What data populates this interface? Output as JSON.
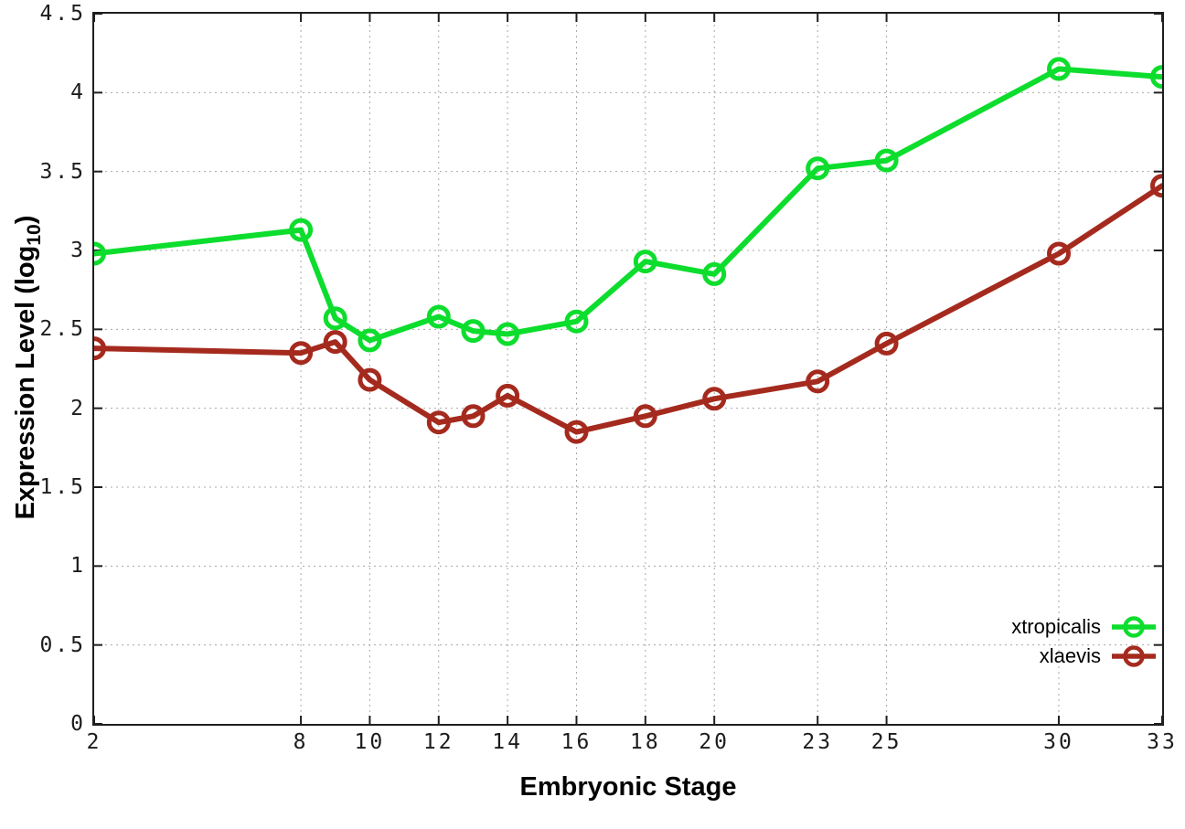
{
  "figure": {
    "background_color": "#ffffff",
    "axis_color": "#1f1f1f",
    "grid_color": "#a8a8a8",
    "tick_label_color": "#1c1c1c"
  },
  "chart_data": {
    "type": "line",
    "title": "",
    "xlabel": "Embryonic Stage",
    "ylabel": "Expression Level (log10)",
    "ylabel_parts": {
      "pre": "Expression Level (log",
      "sub": "10",
      "post": ")"
    },
    "xlim": [
      2,
      33
    ],
    "ylim": [
      0,
      4.5
    ],
    "grid": true,
    "legend_position": "bottom-right-inside",
    "x_ticks": [
      2,
      8,
      10,
      12,
      14,
      16,
      18,
      20,
      23,
      25,
      30,
      33
    ],
    "x_tick_labels": [
      "2",
      "8",
      "10",
      "12",
      "14",
      "16",
      "18",
      "20",
      "23",
      "25",
      "30",
      "33"
    ],
    "y_ticks": [
      0,
      0.5,
      1,
      1.5,
      2,
      2.5,
      3,
      3.5,
      4,
      4.5
    ],
    "y_tick_labels": [
      "0",
      "0.5",
      "1",
      "1.5",
      "2",
      "2.5",
      "3",
      "3.5",
      "4",
      "4.5"
    ],
    "x": [
      2,
      8,
      9,
      10,
      12,
      13,
      14,
      16,
      18,
      20,
      23,
      25,
      30,
      33
    ],
    "series": [
      {
        "name": "xtropicalis",
        "color": "#0ddd2d",
        "values": [
          2.98,
          3.13,
          2.57,
          2.43,
          2.58,
          2.49,
          2.47,
          2.55,
          2.93,
          2.85,
          3.52,
          3.57,
          4.15,
          4.1
        ]
      },
      {
        "name": "xlaevis",
        "color": "#a52a1e",
        "values": [
          2.38,
          2.35,
          2.42,
          2.18,
          1.91,
          1.95,
          2.08,
          1.85,
          1.95,
          2.06,
          2.17,
          2.41,
          2.98,
          3.41
        ]
      }
    ]
  }
}
